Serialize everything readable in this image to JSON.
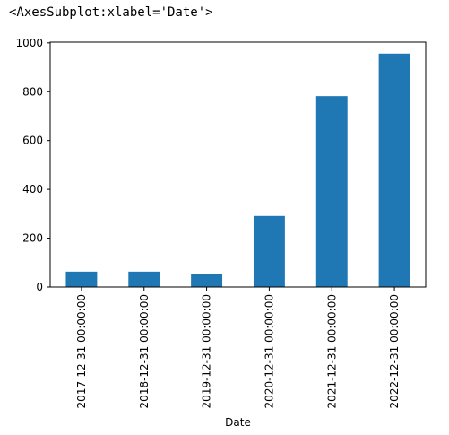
{
  "output_repr": "<AxesSubplot:xlabel='Date'>",
  "chart_data": {
    "type": "bar",
    "xlabel": "Date",
    "ylabel": "",
    "categories": [
      "2017-12-31 00:00:00",
      "2018-12-31 00:00:00",
      "2019-12-31 00:00:00",
      "2020-12-31 00:00:00",
      "2021-12-31 00:00:00",
      "2022-12-31 00:00:00"
    ],
    "values": [
      63,
      63,
      55,
      291,
      782,
      956
    ],
    "ylim": [
      0,
      1003
    ],
    "yticks": [
      0,
      200,
      400,
      600,
      800,
      1000
    ],
    "bar_color": "#1f77b4",
    "grid": false,
    "legend": "none"
  }
}
